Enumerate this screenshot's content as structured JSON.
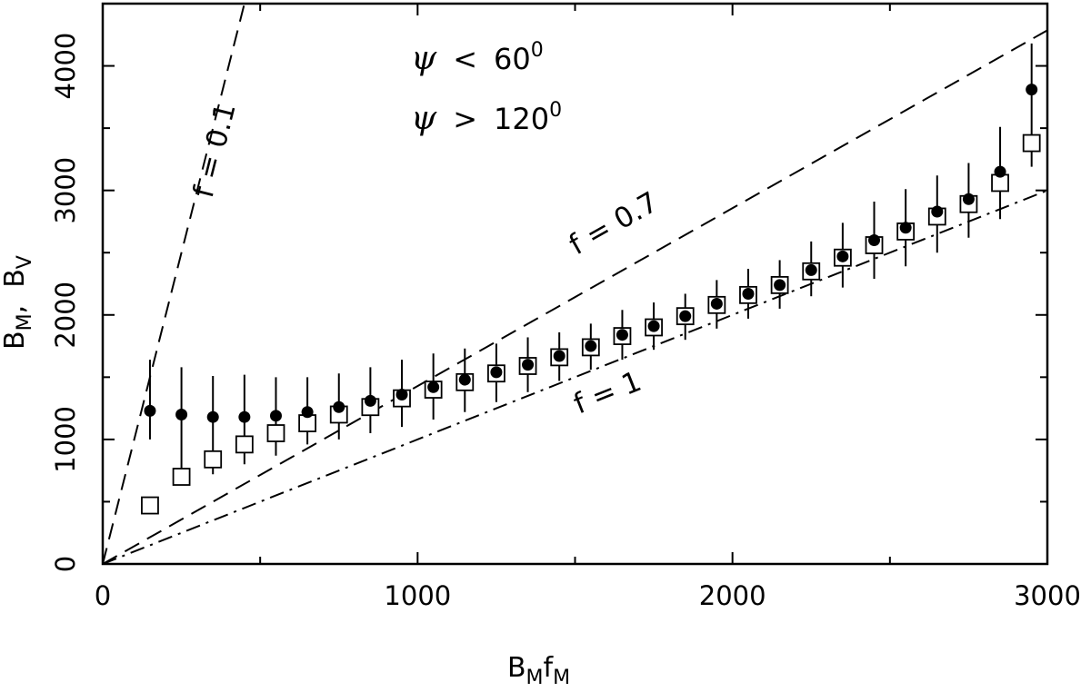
{
  "chart_data": {
    "type": "scatter",
    "title": "",
    "xlabel": {
      "main": "B",
      "sub1": "M",
      "mid": "f",
      "sub2": "M"
    },
    "ylabel": {
      "a": "B",
      "a_sub": "M",
      "sep": ",  ",
      "b": "B",
      "b_sub": "V"
    },
    "xlim": [
      0,
      3000
    ],
    "ylim": [
      0,
      4500
    ],
    "x_ticks": [
      0,
      1000,
      2000,
      3000
    ],
    "x_tick_labels": [
      "0",
      "1000",
      "2000",
      "3000"
    ],
    "x_minor_ticks": [
      500,
      1500,
      2500
    ],
    "y_ticks": [
      0,
      1000,
      2000,
      3000,
      4000
    ],
    "y_tick_labels": [
      "0",
      "1000",
      "2000",
      "3000",
      "4000"
    ],
    "y_minor_ticks": [
      500,
      1500,
      2500,
      3500
    ],
    "grid": false,
    "legend": [
      {
        "symbol": "ψ",
        "op": "<",
        "value": "60",
        "sup": "0",
        "marker": "filled-circle"
      },
      {
        "symbol": "ψ",
        "op": ">",
        "value": "120",
        "sup": "0",
        "marker": "open-square"
      }
    ],
    "reference_lines": [
      {
        "label": "f = 0.1",
        "slope": 10,
        "style": "dashed"
      },
      {
        "label": "f = 0.7",
        "slope": 1.4286,
        "style": "dashed"
      },
      {
        "label": "f = 1",
        "slope": 1.0,
        "style": "dash-dot"
      }
    ],
    "series": [
      {
        "marker": "filled-circle",
        "x": [
          150,
          250,
          350,
          450,
          550,
          650,
          750,
          850,
          950,
          1050,
          1150,
          1250,
          1350,
          1450,
          1550,
          1650,
          1750,
          1850,
          1950,
          2050,
          2150,
          2250,
          2350,
          2450,
          2550,
          2650,
          2750,
          2850,
          2950
        ],
        "y": [
          1230,
          1200,
          1180,
          1180,
          1190,
          1220,
          1260,
          1310,
          1360,
          1420,
          1480,
          1540,
          1600,
          1670,
          1750,
          1840,
          1910,
          1990,
          2090,
          2170,
          2240,
          2360,
          2470,
          2600,
          2700,
          2830,
          2930,
          3150,
          3810
        ],
        "err_low": [
          1000,
          770,
          720,
          800,
          870,
          960,
          1000,
          1050,
          1100,
          1160,
          1220,
          1300,
          1380,
          1470,
          1560,
          1640,
          1720,
          1800,
          1890,
          1970,
          2050,
          2150,
          2220,
          2290,
          2390,
          2500,
          2620,
          2770,
          3190
        ],
        "err_high": [
          1640,
          1580,
          1510,
          1520,
          1500,
          1500,
          1530,
          1580,
          1640,
          1690,
          1730,
          1770,
          1820,
          1860,
          1930,
          2040,
          2100,
          2170,
          2280,
          2370,
          2440,
          2590,
          2740,
          2910,
          3010,
          3120,
          3220,
          3510,
          4180
        ]
      },
      {
        "marker": "open-square",
        "x": [
          150,
          250,
          350,
          450,
          550,
          650,
          750,
          850,
          950,
          1050,
          1150,
          1250,
          1350,
          1450,
          1550,
          1650,
          1750,
          1850,
          1950,
          2050,
          2150,
          2250,
          2350,
          2450,
          2550,
          2650,
          2750,
          2850,
          2950
        ],
        "y": [
          470,
          700,
          840,
          960,
          1050,
          1130,
          1200,
          1260,
          1330,
          1400,
          1460,
          1530,
          1590,
          1660,
          1740,
          1830,
          1900,
          1990,
          2080,
          2160,
          2240,
          2350,
          2460,
          2560,
          2670,
          2790,
          2890,
          3060,
          3380
        ]
      }
    ]
  }
}
